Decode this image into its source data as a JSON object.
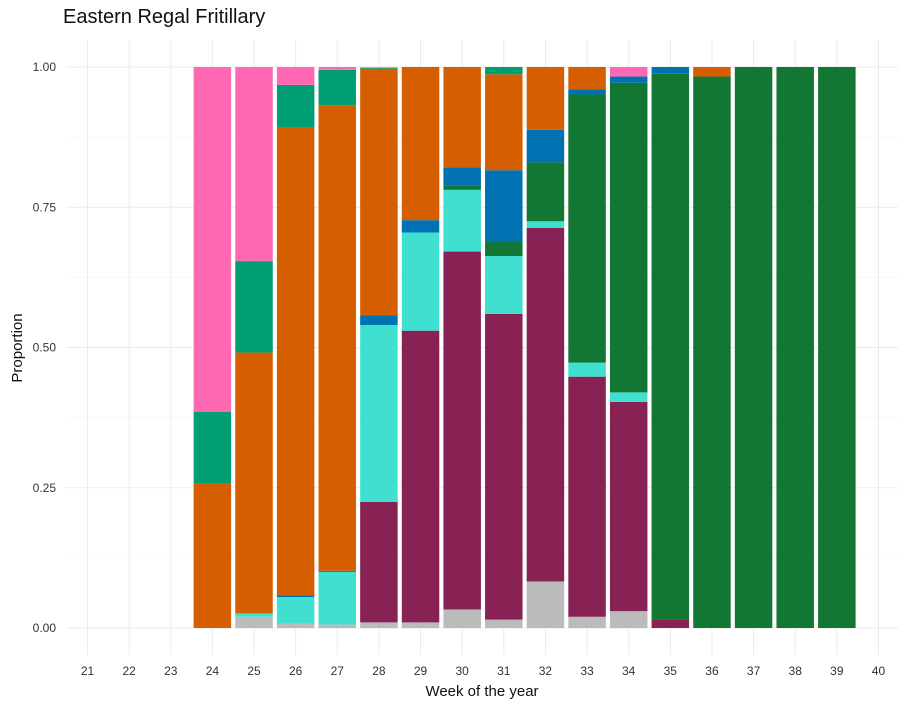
{
  "chart_data": {
    "type": "bar",
    "stacked": true,
    "normalized": true,
    "title": "Eastern Regal Fritillary",
    "xlabel": "Week of the year",
    "ylabel": "Proportion",
    "ylim": [
      0,
      1
    ],
    "xlim": [
      21,
      40
    ],
    "x_ticks": [
      "21",
      "22",
      "23",
      "24",
      "25",
      "26",
      "27",
      "28",
      "29",
      "30",
      "31",
      "32",
      "33",
      "34",
      "35",
      "36",
      "37",
      "38",
      "39",
      "40"
    ],
    "y_ticks": [
      "0.00",
      "0.25",
      "0.50",
      "0.75",
      "1.00"
    ],
    "grid": true,
    "legend": "none",
    "categories": [
      24,
      25,
      26,
      27,
      28,
      29,
      30,
      31,
      32,
      33,
      34,
      35,
      36,
      37,
      38,
      39
    ],
    "series": [
      {
        "color": "#BBBBBB",
        "values": [
          0,
          0.02,
          0.008,
          0.006,
          0.01,
          0.01,
          0.033,
          0.015,
          0.083,
          0.02,
          0.03,
          0,
          0,
          0,
          0,
          0
        ]
      },
      {
        "color": "#882255",
        "values": [
          0,
          0,
          0,
          0,
          0.215,
          0.52,
          0.638,
          0.545,
          0.63,
          0.428,
          0.373,
          0.015,
          0,
          0,
          0,
          0
        ]
      },
      {
        "color": "#40E0D0",
        "values": [
          0,
          0.006,
          0.047,
          0.094,
          0.315,
          0.175,
          0.11,
          0.103,
          0.012,
          0.025,
          0.017,
          0,
          0,
          0,
          0,
          0
        ]
      },
      {
        "color": "#117733",
        "values": [
          0,
          0,
          0,
          0,
          0,
          0,
          0.008,
          0.025,
          0.105,
          0.478,
          0.552,
          0.973,
          0.983,
          1,
          1,
          1
        ]
      },
      {
        "color": "#0072B2",
        "values": [
          0,
          0,
          0.003,
          0.002,
          0.017,
          0.022,
          0.032,
          0.128,
          0.058,
          0.009,
          0.011,
          0.012,
          0,
          0,
          0,
          0
        ]
      },
      {
        "color": "#D55E00",
        "values": [
          0.257,
          0.465,
          0.835,
          0.83,
          0.44,
          0.273,
          0.179,
          0.171,
          0.112,
          0.04,
          0,
          0,
          0.017,
          0,
          0,
          0
        ]
      },
      {
        "color": "#009E73",
        "values": [
          0.128,
          0.163,
          0.075,
          0.063,
          0.002,
          0,
          0,
          0.013,
          0,
          0,
          0,
          0,
          0,
          0,
          0,
          0
        ]
      },
      {
        "color": "#FF69B4",
        "values": [
          0.615,
          0.346,
          0.032,
          0.005,
          0,
          0,
          0,
          0,
          0,
          0,
          0.017,
          0,
          0,
          0,
          0,
          0
        ]
      }
    ]
  }
}
